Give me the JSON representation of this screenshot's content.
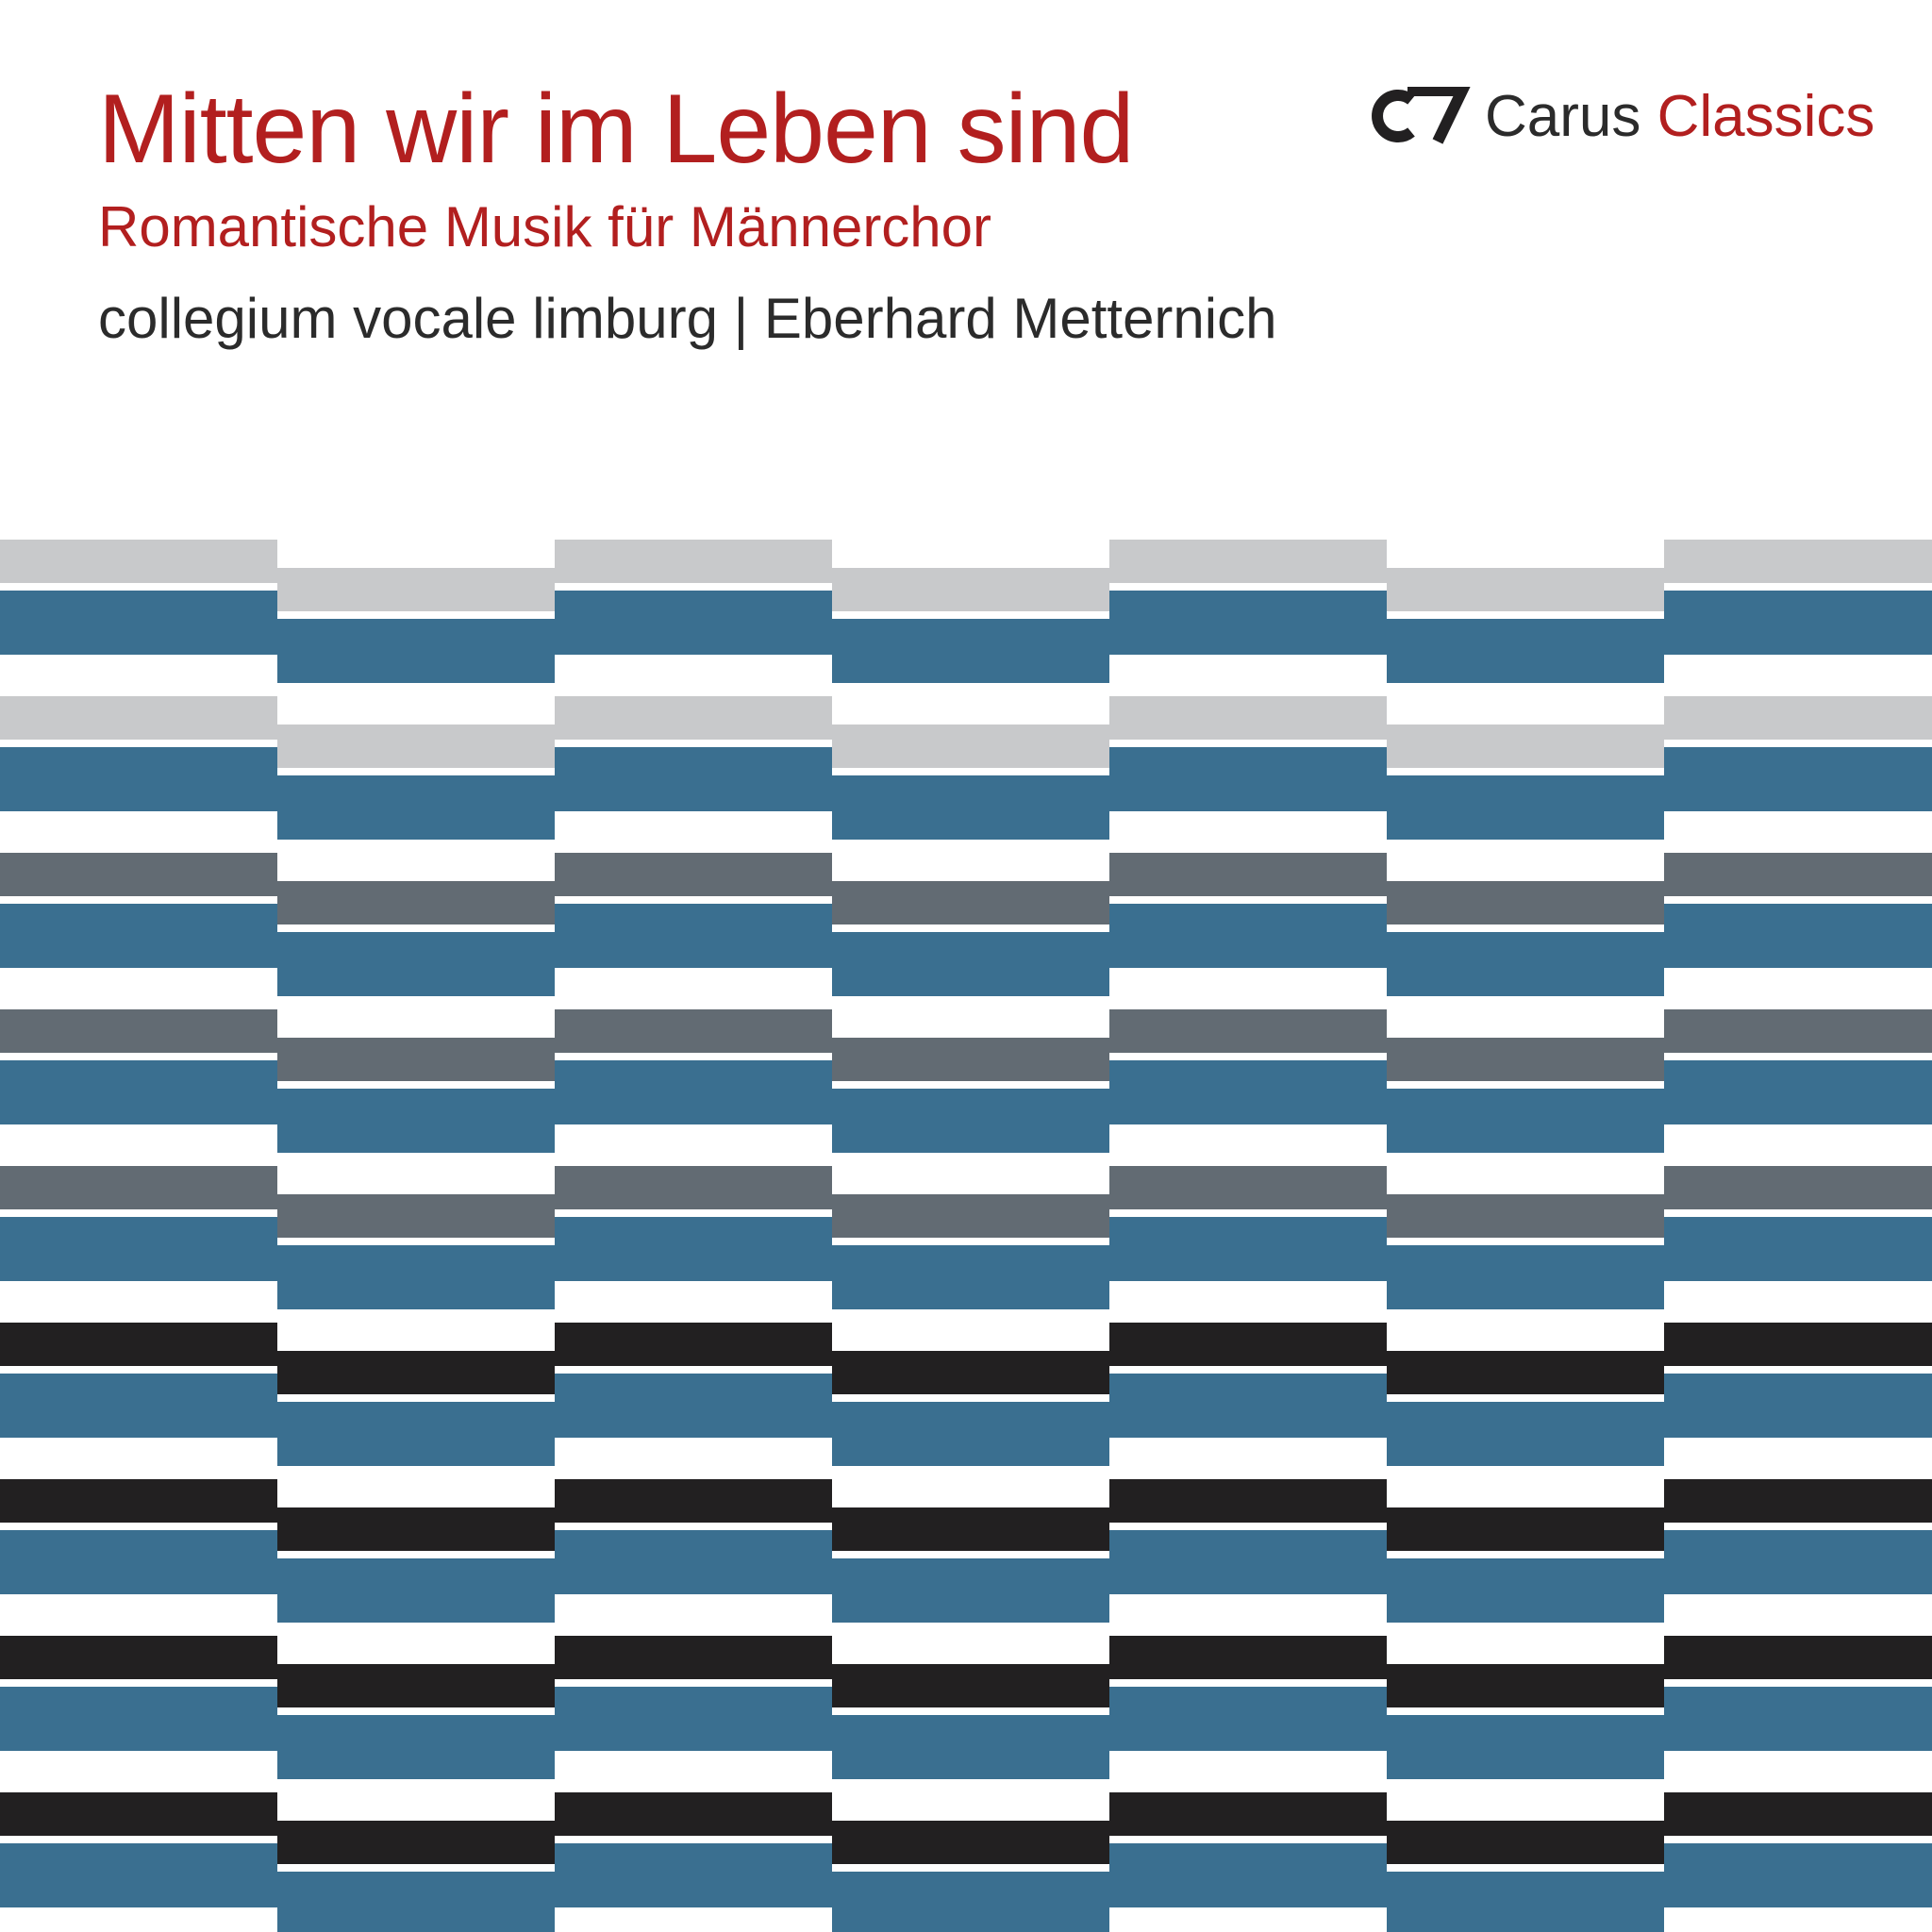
{
  "title": "Mitten wir im Leben sind",
  "subtitle": "Romantische Musik für Männerchor",
  "performers": "collegium vocale limburg | Eberhard Metternich",
  "logo": {
    "brand": "Carus",
    "series": "Classics",
    "icon": "cv-monogram-icon"
  },
  "colors": {
    "title_red": "#b21f1f",
    "text_dark": "#2b2b2b",
    "blue": "#3a6f90",
    "light_gray": "#c8c9cb",
    "slate_gray": "#626b73",
    "black": "#222021"
  },
  "pattern": {
    "rows": [
      "light_gray",
      "light_gray",
      "slate_gray",
      "slate_gray",
      "slate_gray",
      "black",
      "black",
      "black",
      "black"
    ]
  }
}
